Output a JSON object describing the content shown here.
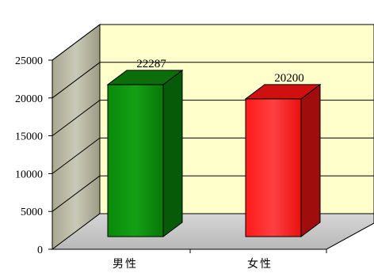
{
  "chart_data": {
    "type": "bar",
    "categories": [
      "男性",
      "女性"
    ],
    "values": [
      22287,
      20200
    ],
    "data_labels": [
      "22287",
      "20200"
    ],
    "ylim": [
      0,
      25000
    ],
    "yticks": [
      "0",
      "5000",
      "10000",
      "15000",
      "20000",
      "25000"
    ],
    "grid": true,
    "bar_colors": [
      "#0a8a0a",
      "#ff1a1a"
    ],
    "bar_side_colors": [
      "#075a07",
      "#a00d0d"
    ],
    "bar_top_colors": [
      "#0b6e0b",
      "#d01010"
    ],
    "wall_back_color": "#ffffcc",
    "wall_side_color": "#b4b498",
    "floor_color": "#c8c8c8"
  }
}
